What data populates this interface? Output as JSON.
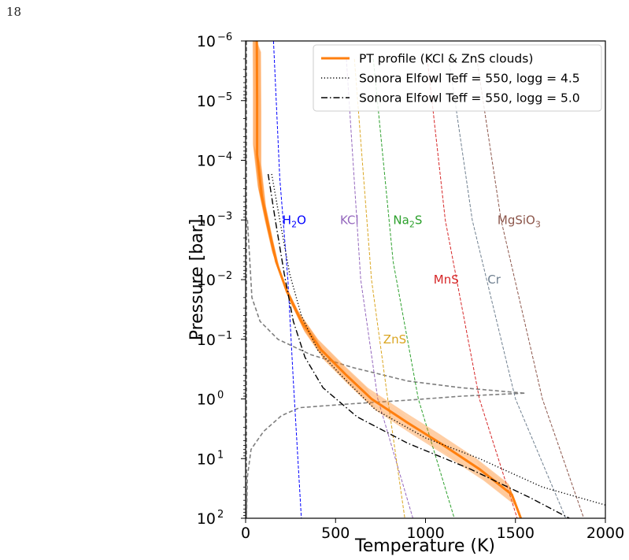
{
  "page": {
    "number": "18"
  },
  "chart_data": {
    "type": "line",
    "xlabel": "Temperature (K)",
    "ylabel": "Pressure [bar]",
    "xlim": [
      0,
      2000
    ],
    "ylim": [
      100,
      1e-06
    ],
    "yscale": "log",
    "y_inverted": true,
    "grid": false,
    "legend_position": "upper-right",
    "x_ticks": [
      0,
      500,
      1000,
      1500,
      2000
    ],
    "y_ticks": [
      {
        "value": 1e-06,
        "base": "10",
        "exp": "−6"
      },
      {
        "value": 1e-05,
        "base": "10",
        "exp": "−5"
      },
      {
        "value": 0.0001,
        "base": "10",
        "exp": "−4"
      },
      {
        "value": 0.001,
        "base": "10",
        "exp": "−3"
      },
      {
        "value": 0.01,
        "base": "10",
        "exp": "−2"
      },
      {
        "value": 0.1,
        "base": "10",
        "exp": "−1"
      },
      {
        "value": 1,
        "base": "10",
        "exp": "0"
      },
      {
        "value": 10,
        "base": "10",
        "exp": "1"
      },
      {
        "value": 100,
        "base": "10",
        "exp": "2"
      }
    ],
    "series": [
      {
        "name": "PT profile (KCl & ZnS clouds)",
        "style": "solid",
        "color": "#ff7f0e",
        "role": "retrieved",
        "points": [
          [
            62,
            1e-06
          ],
          [
            64,
            1e-05
          ],
          [
            64,
            8e-05
          ],
          [
            90,
            0.0004
          ],
          [
            130,
            0.0015
          ],
          [
            170,
            0.005
          ],
          [
            230,
            0.016
          ],
          [
            310,
            0.05
          ],
          [
            420,
            0.15
          ],
          [
            560,
            0.4
          ],
          [
            700,
            1.0
          ],
          [
            900,
            2.5
          ],
          [
            1100,
            6
          ],
          [
            1300,
            15
          ],
          [
            1480,
            40
          ],
          [
            1530,
            100
          ]
        ]
      },
      {
        "name": "Sonora Elfowl Teff = 550, logg = 4.5",
        "style": "dotted",
        "color": "#000000",
        "points": [
          [
            145,
            0.00017
          ],
          [
            190,
            0.001
          ],
          [
            245,
            0.008
          ],
          [
            310,
            0.04
          ],
          [
            400,
            0.15
          ],
          [
            530,
            0.4
          ],
          [
            720,
            1.5
          ],
          [
            1000,
            4.5
          ],
          [
            1300,
            10
          ],
          [
            1650,
            30
          ],
          [
            2000,
            60
          ]
        ]
      },
      {
        "name": "Sonora Elfowl Teff = 550, logg = 5.0",
        "style": "dashdot",
        "color": "#000000",
        "points": [
          [
            125,
            0.00017
          ],
          [
            165,
            0.001
          ],
          [
            215,
            0.008
          ],
          [
            265,
            0.05
          ],
          [
            330,
            0.2
          ],
          [
            430,
            0.65
          ],
          [
            620,
            2.0
          ],
          [
            900,
            5.5
          ],
          [
            1250,
            15
          ],
          [
            1580,
            45
          ],
          [
            1800,
            100
          ]
        ]
      }
    ],
    "unlabeled_curves": [
      {
        "color": "#7f7f7f",
        "style": "dashed",
        "points": [
          [
            5,
            1e-06
          ],
          [
            5,
            100
          ]
        ]
      },
      {
        "color": "#7f7f7f",
        "style": "dashed",
        "points": [
          [
            10,
            0.001
          ],
          [
            35,
            0.02
          ],
          [
            80,
            0.05
          ],
          [
            180,
            0.1
          ],
          [
            360,
            0.18
          ],
          [
            600,
            0.3
          ],
          [
            900,
            0.5
          ],
          [
            1200,
            0.65
          ],
          [
            1550,
            0.8
          ]
        ]
      },
      {
        "color": "#7f7f7f",
        "style": "dashed",
        "points": [
          [
            1550,
            0.8
          ],
          [
            1200,
            0.9
          ],
          [
            900,
            1.05
          ],
          [
            600,
            1.2
          ],
          [
            300,
            1.4
          ],
          [
            200,
            1.9
          ],
          [
            100,
            3.5
          ],
          [
            30,
            7
          ],
          [
            10,
            20
          ],
          [
            5,
            100
          ]
        ]
      }
    ],
    "condensation_curves": [
      {
        "label": "H",
        "sub": "2",
        "suffix": "O",
        "color": "#0000ff",
        "label_at": [
          205,
          0.001
        ],
        "points": [
          [
            155,
            1e-06
          ],
          [
            190,
            0.0002
          ],
          [
            235,
            0.01
          ],
          [
            265,
            0.5
          ],
          [
            310,
            100
          ]
        ]
      },
      {
        "label": "KCl",
        "sub": "",
        "suffix": "",
        "color": "#9467bd",
        "label_at": [
          525,
          0.001
        ],
        "points": [
          [
            560,
            2e-06
          ],
          [
            640,
            0.01
          ],
          [
            735,
            1
          ],
          [
            930,
            100
          ]
        ]
      },
      {
        "label": "Na",
        "sub": "2",
        "suffix": "S",
        "color": "#2ca02c",
        "label_at": [
          820,
          0.001
        ],
        "points": [
          [
            710,
            2e-06
          ],
          [
            820,
            0.005
          ],
          [
            960,
            1
          ],
          [
            1160,
            100
          ]
        ]
      },
      {
        "label": "ZnS",
        "sub": "",
        "suffix": "",
        "color": "#daa520",
        "label_at": [
          765,
          0.1
        ],
        "points": [
          [
            605,
            2e-06
          ],
          [
            700,
            0.01
          ],
          [
            790,
            1
          ],
          [
            885,
            100
          ]
        ]
      },
      {
        "label": "MnS",
        "sub": "",
        "suffix": "",
        "color": "#d62728",
        "label_at": [
          1045,
          0.01
        ],
        "points": [
          [
            1010,
            2e-06
          ],
          [
            1110,
            0.001
          ],
          [
            1300,
            1
          ],
          [
            1510,
            100
          ]
        ]
      },
      {
        "label": "Cr",
        "sub": "",
        "suffix": "",
        "color": "#708090",
        "label_at": [
          1345,
          0.01
        ],
        "points": [
          [
            1130,
            2e-06
          ],
          [
            1260,
            0.001
          ],
          [
            1500,
            1
          ],
          [
            1780,
            100
          ]
        ]
      },
      {
        "label": "MgSiO",
        "sub": "3",
        "suffix": "",
        "color": "#8c564b",
        "label_at": [
          1400,
          0.001
        ],
        "points": [
          [
            1285,
            2e-06
          ],
          [
            1420,
            0.001
          ],
          [
            1650,
            1
          ],
          [
            1880,
            100
          ]
        ]
      }
    ]
  }
}
